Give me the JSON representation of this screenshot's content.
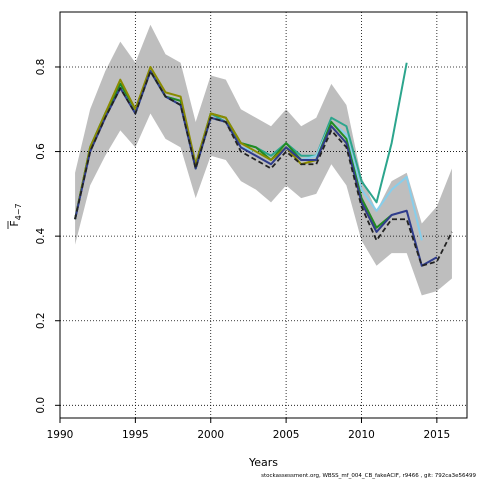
{
  "chart_data": {
    "type": "line",
    "title": "",
    "xlabel": "Years",
    "ylabel_main": "F",
    "ylabel_sub": "4−7",
    "xlim": [
      1990,
      2017
    ],
    "ylim": [
      -0.03,
      0.93
    ],
    "x_ticks": [
      1990,
      1995,
      2000,
      2005,
      2010,
      2015
    ],
    "y_ticks": [
      0.0,
      0.2,
      0.4,
      0.6,
      0.8
    ],
    "y_tick_labels": [
      "0.0",
      "0.2",
      "0.4",
      "0.6",
      "0.8"
    ],
    "grid": true,
    "band": {
      "color": "#bebebe",
      "x": [
        1991,
        1992,
        1993,
        1994,
        1995,
        1996,
        1997,
        1998,
        1999,
        2000,
        2001,
        2002,
        2003,
        2004,
        2005,
        2006,
        2007,
        2008,
        2009,
        2010,
        2011,
        2012,
        2013,
        2014,
        2015,
        2016
      ],
      "upper": [
        0.55,
        0.7,
        0.79,
        0.86,
        0.81,
        0.9,
        0.83,
        0.81,
        0.67,
        0.78,
        0.77,
        0.7,
        0.68,
        0.66,
        0.7,
        0.66,
        0.68,
        0.76,
        0.71,
        0.54,
        0.46,
        0.53,
        0.55,
        0.43,
        0.47,
        0.56
      ],
      "lower": [
        0.38,
        0.52,
        0.59,
        0.65,
        0.61,
        0.69,
        0.63,
        0.61,
        0.49,
        0.59,
        0.58,
        0.53,
        0.51,
        0.48,
        0.52,
        0.49,
        0.5,
        0.57,
        0.52,
        0.39,
        0.33,
        0.36,
        0.36,
        0.26,
        0.27,
        0.3
      ]
    },
    "series": [
      {
        "color": "#2ca58d",
        "dash": false,
        "x": [
          1991,
          1992,
          1993,
          1994,
          1995,
          1996,
          1997,
          1998,
          1999,
          2000,
          2001,
          2002,
          2003,
          2004,
          2005,
          2006,
          2007,
          2008,
          2009,
          2010,
          2011,
          2012,
          2013
        ],
        "values": [
          0.44,
          0.61,
          0.69,
          0.76,
          0.7,
          0.79,
          0.73,
          0.72,
          0.57,
          0.69,
          0.67,
          0.62,
          0.61,
          0.59,
          0.62,
          0.59,
          0.59,
          0.68,
          0.66,
          0.53,
          0.48,
          0.62,
          0.81
        ]
      },
      {
        "color": "#87ceeb",
        "dash": false,
        "x": [
          1991,
          1992,
          1993,
          1994,
          1995,
          1996,
          1997,
          1998,
          1999,
          2000,
          2001,
          2002,
          2003,
          2004,
          2005,
          2006,
          2007,
          2008,
          2009,
          2010,
          2011,
          2012,
          2013,
          2014
        ],
        "values": [
          0.44,
          0.61,
          0.69,
          0.76,
          0.69,
          0.79,
          0.73,
          0.71,
          0.56,
          0.68,
          0.67,
          0.61,
          0.6,
          0.58,
          0.61,
          0.58,
          0.59,
          0.67,
          0.64,
          0.51,
          0.46,
          0.51,
          0.54,
          0.39
        ]
      },
      {
        "color": "#228b22",
        "dash": false,
        "x": [
          1991,
          1992,
          1993,
          1994,
          1995,
          1996,
          1997,
          1998,
          1999,
          2000,
          2001,
          2002,
          2003,
          2004,
          2005,
          2006,
          2007,
          2008,
          2009,
          2010,
          2011,
          2012
        ],
        "values": [
          0.44,
          0.61,
          0.69,
          0.76,
          0.7,
          0.79,
          0.73,
          0.72,
          0.56,
          0.69,
          0.68,
          0.62,
          0.61,
          0.58,
          0.62,
          0.58,
          0.58,
          0.67,
          0.63,
          0.49,
          0.42,
          0.45
        ]
      },
      {
        "color": "#8b8b00",
        "dash": false,
        "x": [
          1991,
          1992,
          1993,
          1994,
          1995,
          1996,
          1997,
          1998,
          1999,
          2000,
          2001,
          2002,
          2003,
          2004,
          2005,
          2006,
          2007,
          2008,
          2009,
          2010,
          2011
        ],
        "values": [
          0.44,
          0.61,
          0.69,
          0.77,
          0.7,
          0.8,
          0.74,
          0.73,
          0.57,
          0.69,
          0.68,
          0.62,
          0.6,
          0.58,
          0.61,
          0.57,
          0.58,
          0.66,
          0.62,
          0.48,
          0.41
        ]
      },
      {
        "color": "#2f3c8c",
        "dash": false,
        "x": [
          1991,
          1992,
          1993,
          1994,
          1995,
          1996,
          1997,
          1998,
          1999,
          2000,
          2001,
          2002,
          2003,
          2004,
          2005,
          2006,
          2007,
          2008,
          2009,
          2010,
          2011,
          2012,
          2013,
          2014,
          2015
        ],
        "values": [
          0.44,
          0.6,
          0.68,
          0.75,
          0.69,
          0.79,
          0.73,
          0.71,
          0.56,
          0.68,
          0.67,
          0.61,
          0.59,
          0.57,
          0.61,
          0.58,
          0.58,
          0.66,
          0.62,
          0.48,
          0.41,
          0.45,
          0.46,
          0.33,
          0.35
        ]
      },
      {
        "color": "#222222",
        "dash": true,
        "x": [
          1991,
          1992,
          1993,
          1994,
          1995,
          1996,
          1997,
          1998,
          1999,
          2000,
          2001,
          2002,
          2003,
          2004,
          2005,
          2006,
          2007,
          2008,
          2009,
          2010,
          2011,
          2012,
          2013,
          2014,
          2015,
          2016
        ],
        "values": [
          0.44,
          0.6,
          0.68,
          0.75,
          0.69,
          0.79,
          0.73,
          0.71,
          0.56,
          0.68,
          0.67,
          0.6,
          0.58,
          0.56,
          0.6,
          0.57,
          0.57,
          0.65,
          0.61,
          0.47,
          0.39,
          0.44,
          0.44,
          0.33,
          0.34,
          0.41
        ]
      }
    ],
    "footer": "stockassessment.org, WBSS_mf_004_CB_fakeACIF, r9466 , git: 792ca3e56499"
  }
}
